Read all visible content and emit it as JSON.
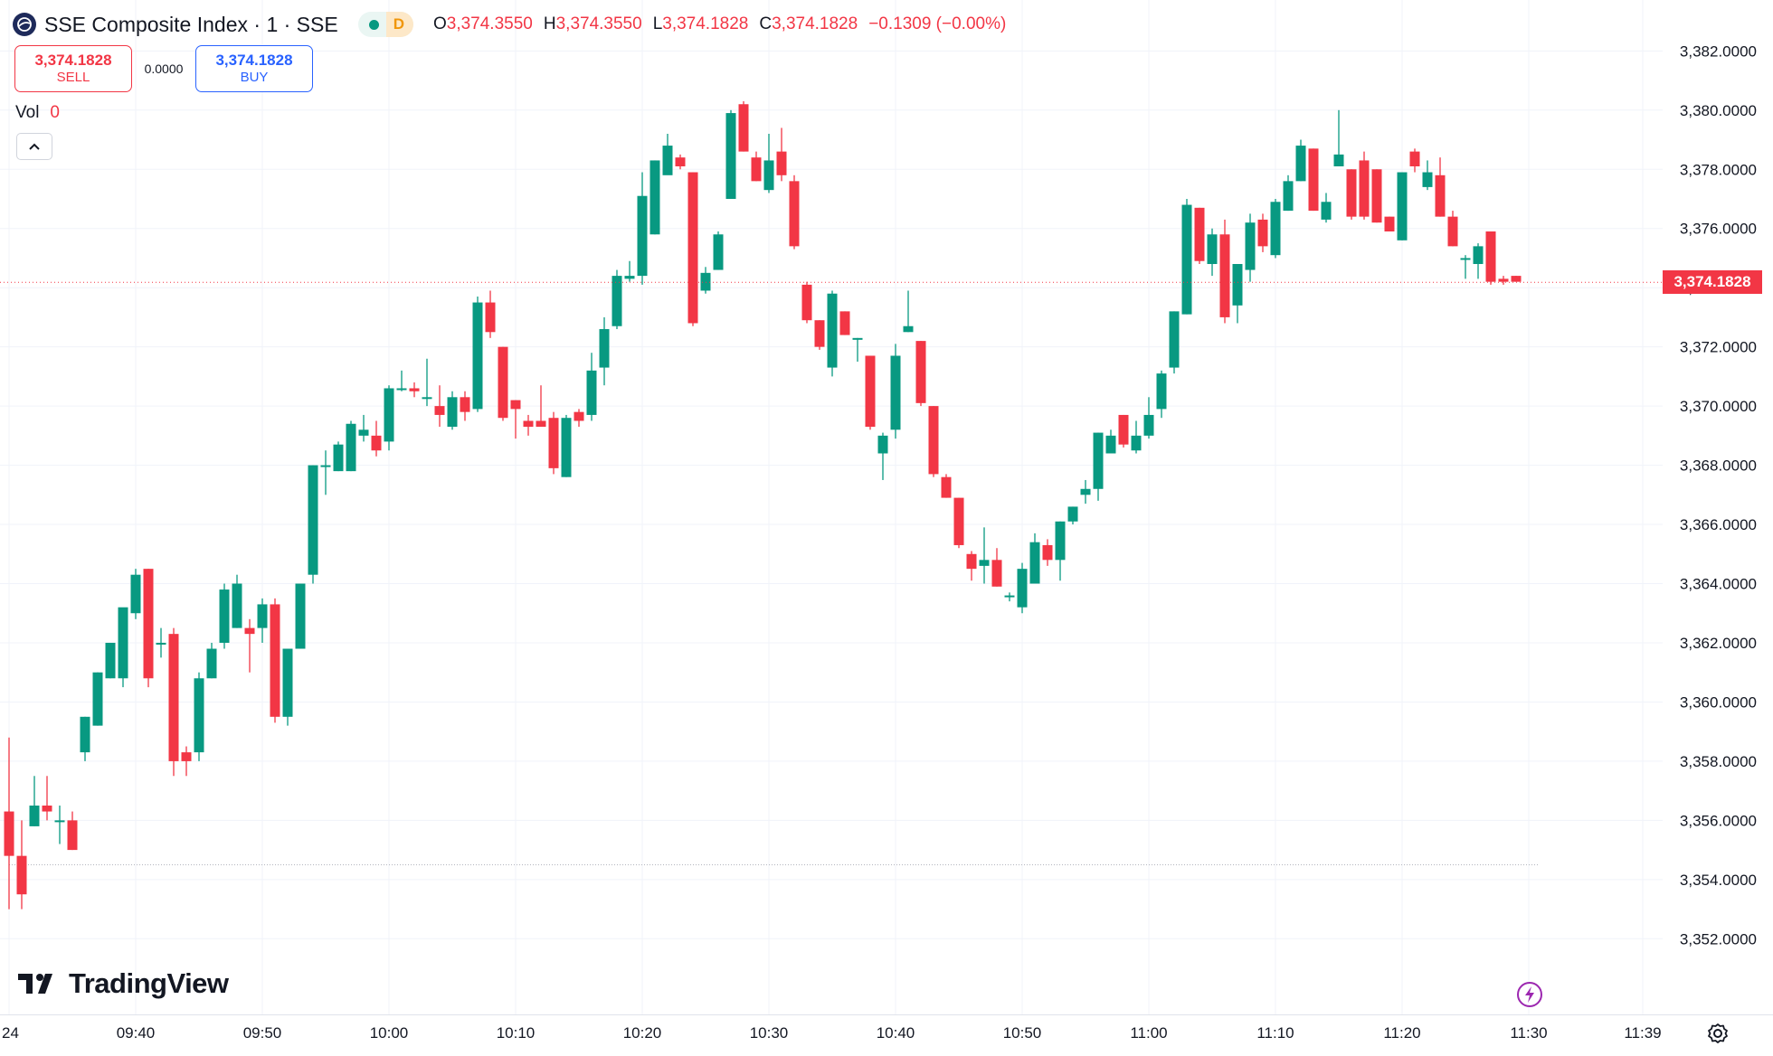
{
  "header": {
    "title": "SSE Composite Index · 1 · SSE",
    "status_letter": "D",
    "ohlc": [
      {
        "key": "O",
        "value": "3,374.3550"
      },
      {
        "key": "H",
        "value": "3,374.3550"
      },
      {
        "key": "L",
        "value": "3,374.1828"
      },
      {
        "key": "C",
        "value": "3,374.1828"
      }
    ],
    "change": "−0.1309 (−0.00%)"
  },
  "trade": {
    "sell_price": "3,374.1828",
    "sell_label": "SELL",
    "spread": "0.0000",
    "buy_price": "3,374.1828",
    "buy_label": "BUY"
  },
  "volume": {
    "label": "Vol",
    "value": "0"
  },
  "brand": "TradingView",
  "colors": {
    "up": "#089981",
    "down": "#f23645",
    "grid": "#f0f3fa",
    "text": "#131722"
  },
  "icons": {
    "symbol": "globe-icon",
    "collapse": "chevron-up-icon",
    "bolt": "lightning-icon",
    "settings": "gear-icon"
  },
  "chart_data": {
    "type": "candlestick",
    "interval_minutes": 1,
    "last_price": "3,374.1828",
    "ylim": [
      3350.5,
      3383.0
    ],
    "y_ticks": [
      3352,
      3354,
      3356,
      3358,
      3360,
      3362,
      3364,
      3366,
      3368,
      3370,
      3372,
      3374,
      3376,
      3378,
      3380,
      3382
    ],
    "y_tick_labels": [
      "3,352.0000",
      "3,354.0000",
      "3,356.0000",
      "3,358.0000",
      "3,360.0000",
      "3,362.0000",
      "3,364.0000",
      "3,366.0000",
      "3,368.0000",
      "3,370.0000",
      "3,372.0000",
      "3,374.0000",
      "3,376.0000",
      "3,378.0000",
      "3,380.0000",
      "3,382.0000"
    ],
    "x_tick_labels": [
      "24",
      "09:40",
      "09:50",
      "10:00",
      "10:10",
      "10:20",
      "10:30",
      "10:40",
      "10:50",
      "11:00",
      "11:10",
      "11:20",
      "11:30",
      "11:39"
    ],
    "x_tick_times": [
      "09:30",
      "09:40",
      "09:50",
      "10:00",
      "10:10",
      "10:20",
      "10:30",
      "10:40",
      "10:50",
      "11:00",
      "11:10",
      "11:20",
      "11:30",
      "11:39"
    ],
    "reference_level": 3354.5,
    "candles": [
      {
        "t": "09:30",
        "o": 3356.3,
        "h": 3358.8,
        "l": 3353.0,
        "c": 3354.8
      },
      {
        "t": "09:31",
        "o": 3354.8,
        "h": 3356.0,
        "l": 3353.0,
        "c": 3353.5
      },
      {
        "t": "09:32",
        "o": 3355.8,
        "h": 3357.5,
        "l": 3355.8,
        "c": 3356.5
      },
      {
        "t": "09:33",
        "o": 3356.5,
        "h": 3357.5,
        "l": 3356.0,
        "c": 3356.3
      },
      {
        "t": "09:34",
        "o": 3356.0,
        "h": 3356.5,
        "l": 3355.2,
        "c": 3356.0
      },
      {
        "t": "09:35",
        "o": 3356.0,
        "h": 3356.3,
        "l": 3355.0,
        "c": 3355.0
      },
      {
        "t": "09:36",
        "o": 3358.3,
        "h": 3359.5,
        "l": 3358.0,
        "c": 3359.5
      },
      {
        "t": "09:37",
        "o": 3359.2,
        "h": 3361.0,
        "l": 3359.2,
        "c": 3361.0
      },
      {
        "t": "09:38",
        "o": 3360.8,
        "h": 3362.0,
        "l": 3360.8,
        "c": 3362.0
      },
      {
        "t": "09:39",
        "o": 3360.8,
        "h": 3363.0,
        "l": 3360.5,
        "c": 3363.2
      },
      {
        "t": "09:40",
        "o": 3363.0,
        "h": 3364.5,
        "l": 3362.8,
        "c": 3364.3
      },
      {
        "t": "09:41",
        "o": 3364.5,
        "h": 3364.5,
        "l": 3360.5,
        "c": 3360.8
      },
      {
        "t": "09:42",
        "o": 3362.0,
        "h": 3362.5,
        "l": 3361.5,
        "c": 3362.0
      },
      {
        "t": "09:43",
        "o": 3362.3,
        "h": 3362.5,
        "l": 3357.5,
        "c": 3358.0
      },
      {
        "t": "09:44",
        "o": 3358.3,
        "h": 3358.5,
        "l": 3357.5,
        "c": 3358.0
      },
      {
        "t": "09:45",
        "o": 3358.3,
        "h": 3361.0,
        "l": 3358.0,
        "c": 3360.8
      },
      {
        "t": "09:46",
        "o": 3360.8,
        "h": 3362.0,
        "l": 3360.8,
        "c": 3361.8
      },
      {
        "t": "09:47",
        "o": 3362.0,
        "h": 3364.0,
        "l": 3361.8,
        "c": 3363.8
      },
      {
        "t": "09:48",
        "o": 3362.5,
        "h": 3364.3,
        "l": 3362.5,
        "c": 3364.0
      },
      {
        "t": "09:49",
        "o": 3362.5,
        "h": 3362.8,
        "l": 3361.0,
        "c": 3362.3
      },
      {
        "t": "09:50",
        "o": 3362.5,
        "h": 3363.5,
        "l": 3362.0,
        "c": 3363.3
      },
      {
        "t": "09:51",
        "o": 3363.3,
        "h": 3363.5,
        "l": 3359.3,
        "c": 3359.5
      },
      {
        "t": "09:52",
        "o": 3359.5,
        "h": 3361.8,
        "l": 3359.2,
        "c": 3361.8
      },
      {
        "t": "09:53",
        "o": 3361.8,
        "h": 3364.0,
        "l": 3361.8,
        "c": 3364.0
      },
      {
        "t": "09:54",
        "o": 3364.3,
        "h": 3368.0,
        "l": 3364.0,
        "c": 3368.0
      },
      {
        "t": "09:55",
        "o": 3368.0,
        "h": 3368.5,
        "l": 3367.0,
        "c": 3368.0
      },
      {
        "t": "09:56",
        "o": 3367.8,
        "h": 3368.8,
        "l": 3367.8,
        "c": 3368.7
      },
      {
        "t": "09:57",
        "o": 3367.8,
        "h": 3369.5,
        "l": 3367.8,
        "c": 3369.4
      },
      {
        "t": "09:58",
        "o": 3369.0,
        "h": 3369.7,
        "l": 3368.8,
        "c": 3369.2
      },
      {
        "t": "09:59",
        "o": 3369.0,
        "h": 3369.5,
        "l": 3368.3,
        "c": 3368.5
      },
      {
        "t": "10:00",
        "o": 3368.8,
        "h": 3370.7,
        "l": 3368.5,
        "c": 3370.6
      },
      {
        "t": "10:01",
        "o": 3370.6,
        "h": 3371.2,
        "l": 3370.5,
        "c": 3370.6
      },
      {
        "t": "10:02",
        "o": 3370.6,
        "h": 3370.8,
        "l": 3370.3,
        "c": 3370.5
      },
      {
        "t": "10:03",
        "o": 3370.3,
        "h": 3371.6,
        "l": 3370.0,
        "c": 3370.3
      },
      {
        "t": "10:04",
        "o": 3370.0,
        "h": 3370.7,
        "l": 3369.3,
        "c": 3369.7
      },
      {
        "t": "10:05",
        "o": 3369.3,
        "h": 3370.5,
        "l": 3369.2,
        "c": 3370.3
      },
      {
        "t": "10:06",
        "o": 3370.3,
        "h": 3370.5,
        "l": 3369.5,
        "c": 3369.8
      },
      {
        "t": "10:07",
        "o": 3369.9,
        "h": 3373.7,
        "l": 3369.8,
        "c": 3373.5
      },
      {
        "t": "10:08",
        "o": 3373.5,
        "h": 3373.9,
        "l": 3372.3,
        "c": 3372.5
      },
      {
        "t": "10:09",
        "o": 3372.0,
        "h": 3372.0,
        "l": 3369.5,
        "c": 3369.6
      },
      {
        "t": "10:10",
        "o": 3370.2,
        "h": 3370.2,
        "l": 3368.9,
        "c": 3369.9
      },
      {
        "t": "10:11",
        "o": 3369.5,
        "h": 3369.7,
        "l": 3369.0,
        "c": 3369.3
      },
      {
        "t": "10:12",
        "o": 3369.5,
        "h": 3370.7,
        "l": 3369.3,
        "c": 3369.3
      },
      {
        "t": "10:13",
        "o": 3369.6,
        "h": 3369.8,
        "l": 3367.7,
        "c": 3367.9
      },
      {
        "t": "10:14",
        "o": 3367.6,
        "h": 3369.7,
        "l": 3367.6,
        "c": 3369.6
      },
      {
        "t": "10:15",
        "o": 3369.8,
        "h": 3369.9,
        "l": 3369.3,
        "c": 3369.5
      },
      {
        "t": "10:16",
        "o": 3369.7,
        "h": 3371.8,
        "l": 3369.5,
        "c": 3371.2
      },
      {
        "t": "10:17",
        "o": 3371.3,
        "h": 3373.0,
        "l": 3370.7,
        "c": 3372.6
      },
      {
        "t": "10:18",
        "o": 3372.7,
        "h": 3374.6,
        "l": 3372.6,
        "c": 3374.4
      },
      {
        "t": "10:19",
        "o": 3374.3,
        "h": 3374.9,
        "l": 3374.2,
        "c": 3374.4
      },
      {
        "t": "10:20",
        "o": 3374.4,
        "h": 3377.9,
        "l": 3374.1,
        "c": 3377.1
      },
      {
        "t": "10:21",
        "o": 3375.8,
        "h": 3378.3,
        "l": 3375.8,
        "c": 3378.3
      },
      {
        "t": "10:22",
        "o": 3377.8,
        "h": 3379.2,
        "l": 3377.9,
        "c": 3378.8
      },
      {
        "t": "10:23",
        "o": 3378.4,
        "h": 3378.5,
        "l": 3378.0,
        "c": 3378.1
      },
      {
        "t": "10:24",
        "o": 3377.9,
        "h": 3377.9,
        "l": 3372.7,
        "c": 3372.8
      },
      {
        "t": "10:25",
        "o": 3373.9,
        "h": 3374.7,
        "l": 3373.8,
        "c": 3374.5
      },
      {
        "t": "10:26",
        "o": 3374.6,
        "h": 3375.9,
        "l": 3374.6,
        "c": 3375.8
      },
      {
        "t": "10:27",
        "o": 3377.0,
        "h": 3380.0,
        "l": 3377.0,
        "c": 3379.9
      },
      {
        "t": "10:28",
        "o": 3380.2,
        "h": 3380.3,
        "l": 3378.6,
        "c": 3378.6
      },
      {
        "t": "10:29",
        "o": 3378.4,
        "h": 3378.6,
        "l": 3377.6,
        "c": 3377.6
      },
      {
        "t": "10:30",
        "o": 3377.3,
        "h": 3379.2,
        "l": 3377.2,
        "c": 3378.3
      },
      {
        "t": "10:31",
        "o": 3378.6,
        "h": 3379.4,
        "l": 3377.6,
        "c": 3377.8
      },
      {
        "t": "10:32",
        "o": 3377.6,
        "h": 3377.8,
        "l": 3375.3,
        "c": 3375.4
      },
      {
        "t": "10:33",
        "o": 3374.1,
        "h": 3374.2,
        "l": 3372.8,
        "c": 3372.9
      },
      {
        "t": "10:34",
        "o": 3372.9,
        "h": 3372.9,
        "l": 3371.9,
        "c": 3372.0
      },
      {
        "t": "10:35",
        "o": 3371.3,
        "h": 3373.9,
        "l": 3371.0,
        "c": 3373.8
      },
      {
        "t": "10:36",
        "o": 3373.2,
        "h": 3373.2,
        "l": 3372.4,
        "c": 3372.4
      },
      {
        "t": "10:37",
        "o": 3372.3,
        "h": 3372.3,
        "l": 3371.5,
        "c": 3372.3
      },
      {
        "t": "10:38",
        "o": 3371.7,
        "h": 3371.7,
        "l": 3369.2,
        "c": 3369.3
      },
      {
        "t": "10:39",
        "o": 3368.4,
        "h": 3369.1,
        "l": 3367.5,
        "c": 3369.0
      },
      {
        "t": "10:40",
        "o": 3369.2,
        "h": 3372.1,
        "l": 3368.9,
        "c": 3371.7
      },
      {
        "t": "10:41",
        "o": 3372.5,
        "h": 3373.9,
        "l": 3372.5,
        "c": 3372.7
      },
      {
        "t": "10:42",
        "o": 3372.2,
        "h": 3372.2,
        "l": 3370.0,
        "c": 3370.1
      },
      {
        "t": "10:43",
        "o": 3370.0,
        "h": 3370.0,
        "l": 3367.6,
        "c": 3367.7
      },
      {
        "t": "10:44",
        "o": 3367.6,
        "h": 3367.7,
        "l": 3366.9,
        "c": 3366.9
      },
      {
        "t": "10:45",
        "o": 3366.9,
        "h": 3366.9,
        "l": 3365.2,
        "c": 3365.3
      },
      {
        "t": "10:46",
        "o": 3365.0,
        "h": 3365.1,
        "l": 3364.1,
        "c": 3364.5
      },
      {
        "t": "10:47",
        "o": 3364.6,
        "h": 3365.9,
        "l": 3364.0,
        "c": 3364.8
      },
      {
        "t": "10:48",
        "o": 3364.8,
        "h": 3365.2,
        "l": 3363.9,
        "c": 3363.9
      },
      {
        "t": "10:49",
        "o": 3363.6,
        "h": 3363.7,
        "l": 3363.4,
        "c": 3363.6
      },
      {
        "t": "10:50",
        "o": 3363.2,
        "h": 3364.7,
        "l": 3363.0,
        "c": 3364.5
      },
      {
        "t": "10:51",
        "o": 3364.0,
        "h": 3365.7,
        "l": 3364.0,
        "c": 3365.4
      },
      {
        "t": "10:52",
        "o": 3365.3,
        "h": 3365.5,
        "l": 3364.6,
        "c": 3364.8
      },
      {
        "t": "10:53",
        "o": 3364.8,
        "h": 3366.1,
        "l": 3364.1,
        "c": 3366.1
      },
      {
        "t": "10:54",
        "o": 3366.1,
        "h": 3366.6,
        "l": 3366.0,
        "c": 3366.6
      },
      {
        "t": "10:55",
        "o": 3367.0,
        "h": 3367.5,
        "l": 3366.7,
        "c": 3367.2
      },
      {
        "t": "10:56",
        "o": 3367.2,
        "h": 3369.1,
        "l": 3366.8,
        "c": 3369.1
      },
      {
        "t": "10:57",
        "o": 3368.4,
        "h": 3369.2,
        "l": 3368.4,
        "c": 3369.0
      },
      {
        "t": "10:58",
        "o": 3369.7,
        "h": 3369.7,
        "l": 3368.6,
        "c": 3368.7
      },
      {
        "t": "10:59",
        "o": 3368.5,
        "h": 3369.5,
        "l": 3368.4,
        "c": 3369.0
      },
      {
        "t": "11:00",
        "o": 3369.0,
        "h": 3370.3,
        "l": 3368.9,
        "c": 3369.7
      },
      {
        "t": "11:01",
        "o": 3369.9,
        "h": 3371.2,
        "l": 3369.6,
        "c": 3371.1
      },
      {
        "t": "11:02",
        "o": 3371.3,
        "h": 3373.2,
        "l": 3371.1,
        "c": 3373.2
      },
      {
        "t": "11:03",
        "o": 3373.1,
        "h": 3377.0,
        "l": 3373.1,
        "c": 3376.8
      },
      {
        "t": "11:04",
        "o": 3376.7,
        "h": 3376.7,
        "l": 3374.8,
        "c": 3374.9
      },
      {
        "t": "11:05",
        "o": 3374.8,
        "h": 3376.0,
        "l": 3374.4,
        "c": 3375.8
      },
      {
        "t": "11:06",
        "o": 3375.8,
        "h": 3376.3,
        "l": 3372.8,
        "c": 3373.0
      },
      {
        "t": "11:07",
        "o": 3373.4,
        "h": 3374.8,
        "l": 3372.8,
        "c": 3374.8
      },
      {
        "t": "11:08",
        "o": 3374.6,
        "h": 3376.5,
        "l": 3374.2,
        "c": 3376.2
      },
      {
        "t": "11:09",
        "o": 3376.3,
        "h": 3376.5,
        "l": 3375.2,
        "c": 3375.4
      },
      {
        "t": "11:10",
        "o": 3375.1,
        "h": 3377.0,
        "l": 3375.0,
        "c": 3376.9
      },
      {
        "t": "11:11",
        "o": 3376.6,
        "h": 3377.8,
        "l": 3376.6,
        "c": 3377.6
      },
      {
        "t": "11:12",
        "o": 3377.6,
        "h": 3379.0,
        "l": 3377.6,
        "c": 3378.8
      },
      {
        "t": "11:13",
        "o": 3378.7,
        "h": 3378.7,
        "l": 3376.6,
        "c": 3376.6
      },
      {
        "t": "11:14",
        "o": 3376.3,
        "h": 3377.2,
        "l": 3376.2,
        "c": 3376.9
      },
      {
        "t": "11:15",
        "o": 3378.1,
        "h": 3380.0,
        "l": 3378.1,
        "c": 3378.5
      },
      {
        "t": "11:16",
        "o": 3378.0,
        "h": 3378.0,
        "l": 3376.3,
        "c": 3376.4
      },
      {
        "t": "11:17",
        "o": 3378.3,
        "h": 3378.6,
        "l": 3376.3,
        "c": 3376.4
      },
      {
        "t": "11:18",
        "o": 3378.0,
        "h": 3378.0,
        "l": 3376.2,
        "c": 3376.2
      },
      {
        "t": "11:19",
        "o": 3376.4,
        "h": 3376.4,
        "l": 3375.9,
        "c": 3375.9
      },
      {
        "t": "11:20",
        "o": 3375.6,
        "h": 3377.9,
        "l": 3375.6,
        "c": 3377.9
      },
      {
        "t": "11:21",
        "o": 3378.6,
        "h": 3378.7,
        "l": 3377.9,
        "c": 3378.1
      },
      {
        "t": "11:22",
        "o": 3377.4,
        "h": 3378.3,
        "l": 3377.3,
        "c": 3377.9
      },
      {
        "t": "11:23",
        "o": 3377.8,
        "h": 3378.4,
        "l": 3376.4,
        "c": 3376.4
      },
      {
        "t": "11:24",
        "o": 3376.4,
        "h": 3376.6,
        "l": 3375.4,
        "c": 3375.4
      },
      {
        "t": "11:25",
        "o": 3375.0,
        "h": 3375.1,
        "l": 3374.3,
        "c": 3375.0
      },
      {
        "t": "11:26",
        "o": 3374.8,
        "h": 3375.5,
        "l": 3374.3,
        "c": 3375.4
      },
      {
        "t": "11:27",
        "o": 3375.9,
        "h": 3375.9,
        "l": 3374.1,
        "c": 3374.2
      },
      {
        "t": "11:28",
        "o": 3374.3,
        "h": 3374.4,
        "l": 3374.1,
        "c": 3374.2
      },
      {
        "t": "11:29",
        "o": 3374.4,
        "h": 3374.4,
        "l": 3374.2,
        "c": 3374.2
      }
    ]
  }
}
